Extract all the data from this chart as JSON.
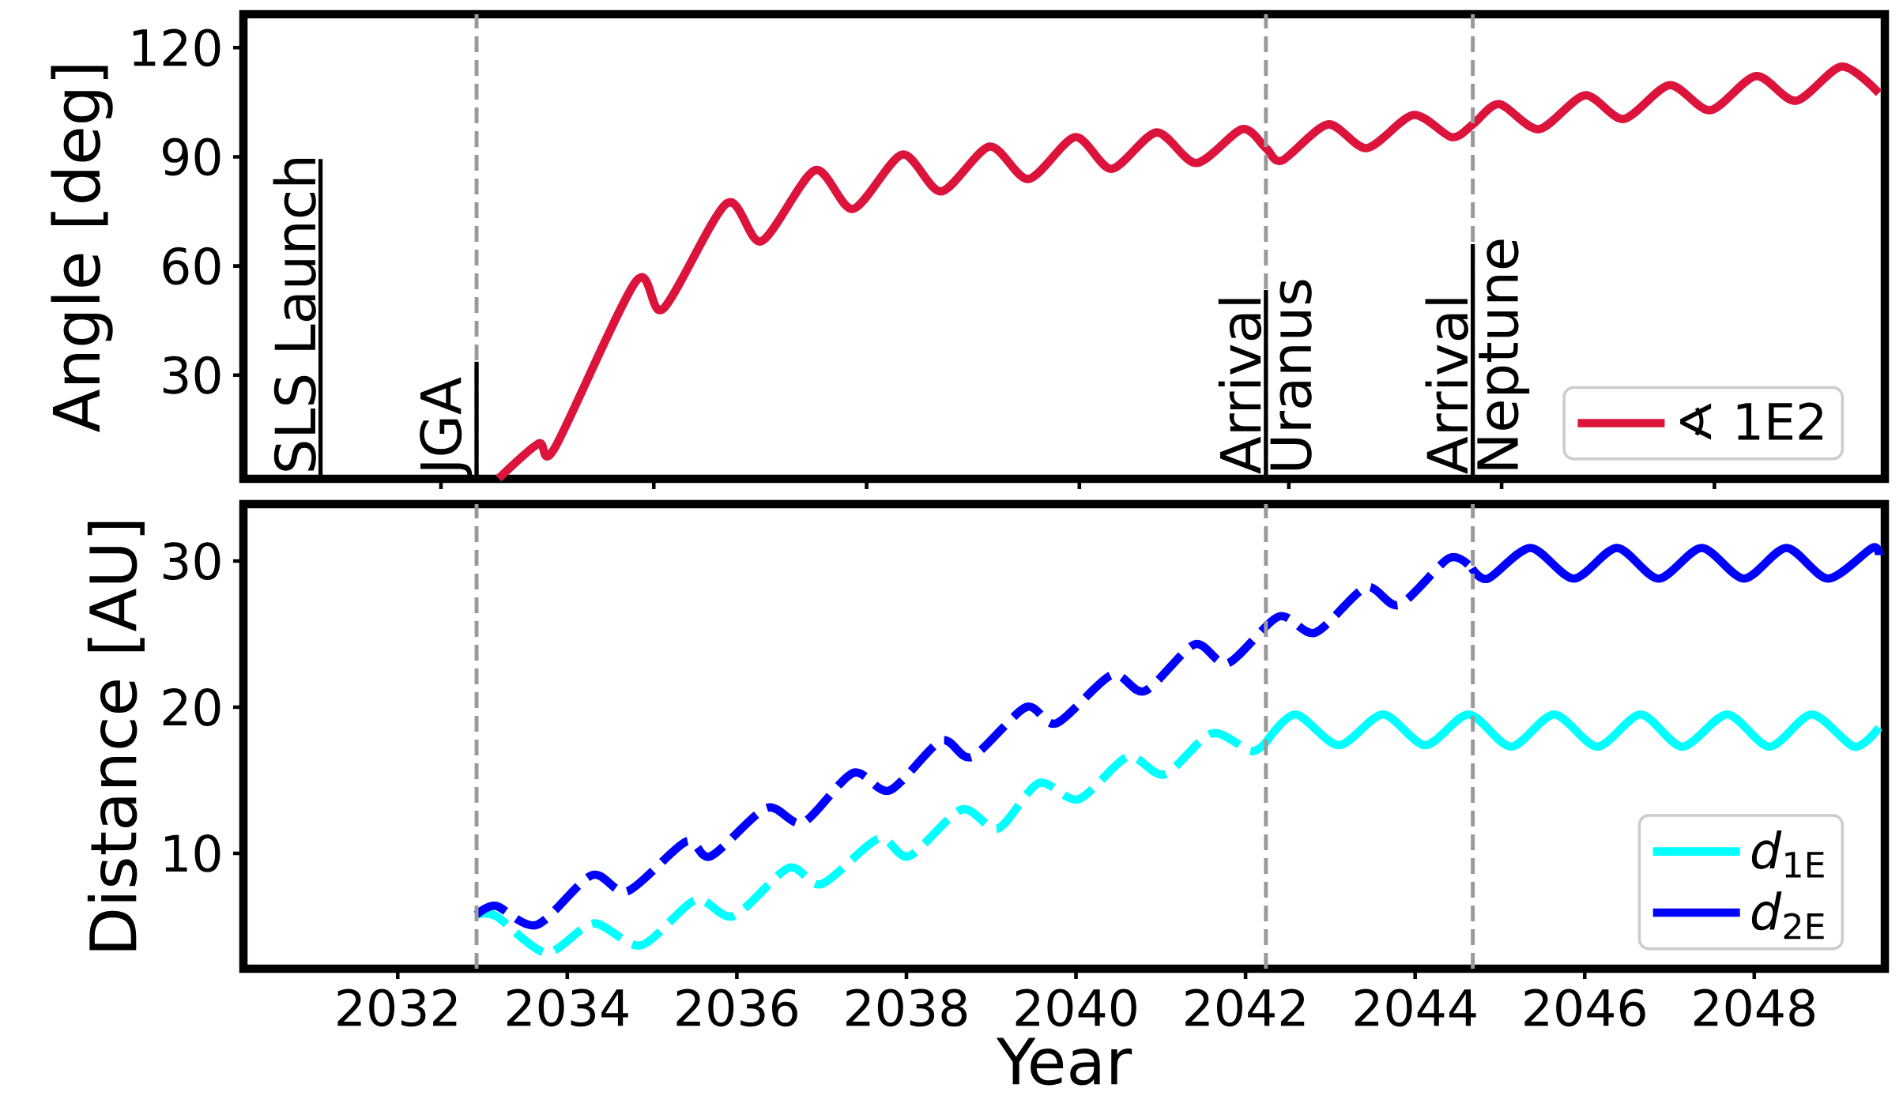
{
  "chart_data": [
    {
      "type": "line",
      "ylabel": "Angle [deg]",
      "xlim": [
        2030.18,
        2049.54
      ],
      "ylim": [
        1.5,
        129.2
      ],
      "xticks": [
        {
          "value": 2032.51,
          "label": null
        },
        {
          "value": 2035.02,
          "label": null
        },
        {
          "value": 2037.53,
          "label": null
        },
        {
          "value": 2040.04,
          "label": null
        },
        {
          "value": 2042.51,
          "label": null
        },
        {
          "value": 2045.02,
          "label": null
        },
        {
          "value": 2047.53,
          "label": null
        }
      ],
      "yticks": [
        30,
        60,
        90,
        120
      ],
      "tick_labels": "y",
      "legend": "bottom right",
      "series": [
        {
          "name": "∢ 1E2",
          "color": "#dc143c",
          "line_style": "solid",
          "x": [
            2033.19,
            2033.66,
            2033.85,
            2034.81,
            2035.13,
            2035.88,
            2036.29,
            2036.92,
            2037.37,
            2037.95,
            2038.41,
            2038.98,
            2039.44,
            2039.99,
            2040.42,
            2040.95,
            2041.42,
            2041.96,
            2042.24,
            2042.43,
            2042.97,
            2043.43,
            2043.98,
            2044.43,
            2044.68,
            2044.99,
            2045.46,
            2046.0,
            2046.46,
            2047.0,
            2047.48,
            2048.02,
            2048.49,
            2049.03,
            2049.47
          ],
          "values": [
            1.6,
            11.2,
            9.9,
            55.8,
            48.2,
            77.2,
            66.8,
            86.3,
            75.7,
            90.6,
            80.5,
            92.8,
            83.9,
            95.4,
            86.7,
            96.7,
            88.3,
            97.6,
            92.4,
            89.0,
            98.9,
            92.4,
            101.5,
            95.4,
            98.9,
            104.5,
            97.6,
            106.9,
            100.4,
            109.7,
            102.8,
            112.2,
            105.4,
            114.8,
            107.5
          ]
        }
      ],
      "ref_lines": [
        {
          "axis": "x",
          "value": 2032.93,
          "color": "#999999",
          "line_style": "dashed"
        },
        {
          "axis": "x",
          "value": 2042.24,
          "label": "Uranus",
          "color": "#999999",
          "line_style": "dashed"
        },
        {
          "axis": "x",
          "value": 2044.68,
          "label": "Neptune",
          "color": "#999999",
          "line_style": "dashed"
        }
      ],
      "annotations": [
        "SLS Launch",
        {
          "text": "JGA",
          "x": 2032.93,
          "y": 33.7
        },
        {
          "text": "Arrival",
          "x": 2042.24,
          "y": 53.4
        },
        {
          "text": "Arrival",
          "x": 2044.68,
          "y": 66.0
        }
      ]
    },
    {
      "type": "line",
      "xlabel": "Year",
      "ylabel": "Distance [AU]",
      "xlim": [
        2030.18,
        2049.54
      ],
      "ylim": [
        2.1,
        33.9
      ],
      "xticks": [
        2032,
        2034,
        2036,
        2038,
        2040,
        2042,
        2044,
        2046,
        2048
      ],
      "yticks": [
        10,
        20,
        30
      ],
      "legend": "bottom right",
      "series": [
        {
          "name": "*d*$_{1E}$",
          "color": "#00ffff",
          "line_style": "solid",
          "x": [
            2042.24,
            2042.59,
            2043.1,
            2043.62,
            2044.12,
            2044.63,
            2045.13,
            2045.64,
            2046.15,
            2046.66,
            2047.15,
            2047.68,
            2048.18,
            2048.68,
            2049.18,
            2049.47
          ],
          "values": [
            17.6,
            19.5,
            17.4,
            19.5,
            17.4,
            19.5,
            17.3,
            19.5,
            17.3,
            19.5,
            17.3,
            19.5,
            17.3,
            19.5,
            17.3,
            18.6
          ]
        },
        {
          "name": "*d*$_{2E}$",
          "color": "#0000ff",
          "line_style": "solid",
          "x": [
            2044.67,
            2044.86,
            2045.36,
            2045.87,
            2046.38,
            2046.87,
            2047.38,
            2047.88,
            2048.38,
            2048.87,
            2049.39,
            2049.47
          ],
          "values": [
            29.5,
            28.8,
            30.9,
            28.8,
            30.9,
            28.8,
            30.9,
            28.8,
            30.9,
            28.8,
            30.9,
            30.4
          ]
        },
        {
          "color": "#00ffff",
          "line_style": "dashed",
          "x": [
            2032.93,
            2033.16,
            2033.75,
            2034.31,
            2034.87,
            2035.51,
            2035.96,
            2036.61,
            2037.0,
            2037.67,
            2038.03,
            2038.65,
            2039.08,
            2039.56,
            2040.03,
            2040.61,
            2041.04,
            2041.6,
            2042.06,
            2042.24
          ],
          "values": [
            5.8,
            5.7,
            3.2,
            5.2,
            3.7,
            6.8,
            5.7,
            9.0,
            7.9,
            11.0,
            9.8,
            13.0,
            11.7,
            14.8,
            13.7,
            16.6,
            15.4,
            18.2,
            17.0,
            17.6
          ]
        },
        {
          "color": "#0000ff",
          "line_style": "dashed",
          "x": [
            2032.93,
            2033.16,
            2033.64,
            2034.29,
            2034.71,
            2035.4,
            2035.69,
            2036.35,
            2036.78,
            2037.37,
            2037.8,
            2038.41,
            2038.77,
            2039.41,
            2039.77,
            2040.42,
            2040.81,
            2041.4,
            2041.79,
            2042.39,
            2042.82,
            2043.42,
            2043.81,
            2044.4,
            2044.67
          ],
          "values": [
            5.8,
            6.4,
            5.1,
            8.5,
            7.4,
            10.8,
            9.8,
            13.1,
            12.1,
            15.5,
            14.3,
            17.7,
            16.6,
            20.0,
            18.9,
            22.2,
            21.1,
            24.3,
            23.0,
            26.2,
            25.1,
            28.2,
            27.0,
            30.2,
            29.5
          ]
        }
      ],
      "ref_lines": [
        {
          "axis": "x",
          "value": 2032.93,
          "color": "#999999",
          "line_style": "dashed"
        },
        {
          "axis": "x",
          "value": 2042.24,
          "color": "#999999",
          "line_style": "dashed"
        },
        {
          "axis": "x",
          "value": 2044.68,
          "color": "#999999",
          "line_style": "dashed"
        }
      ]
    }
  ]
}
